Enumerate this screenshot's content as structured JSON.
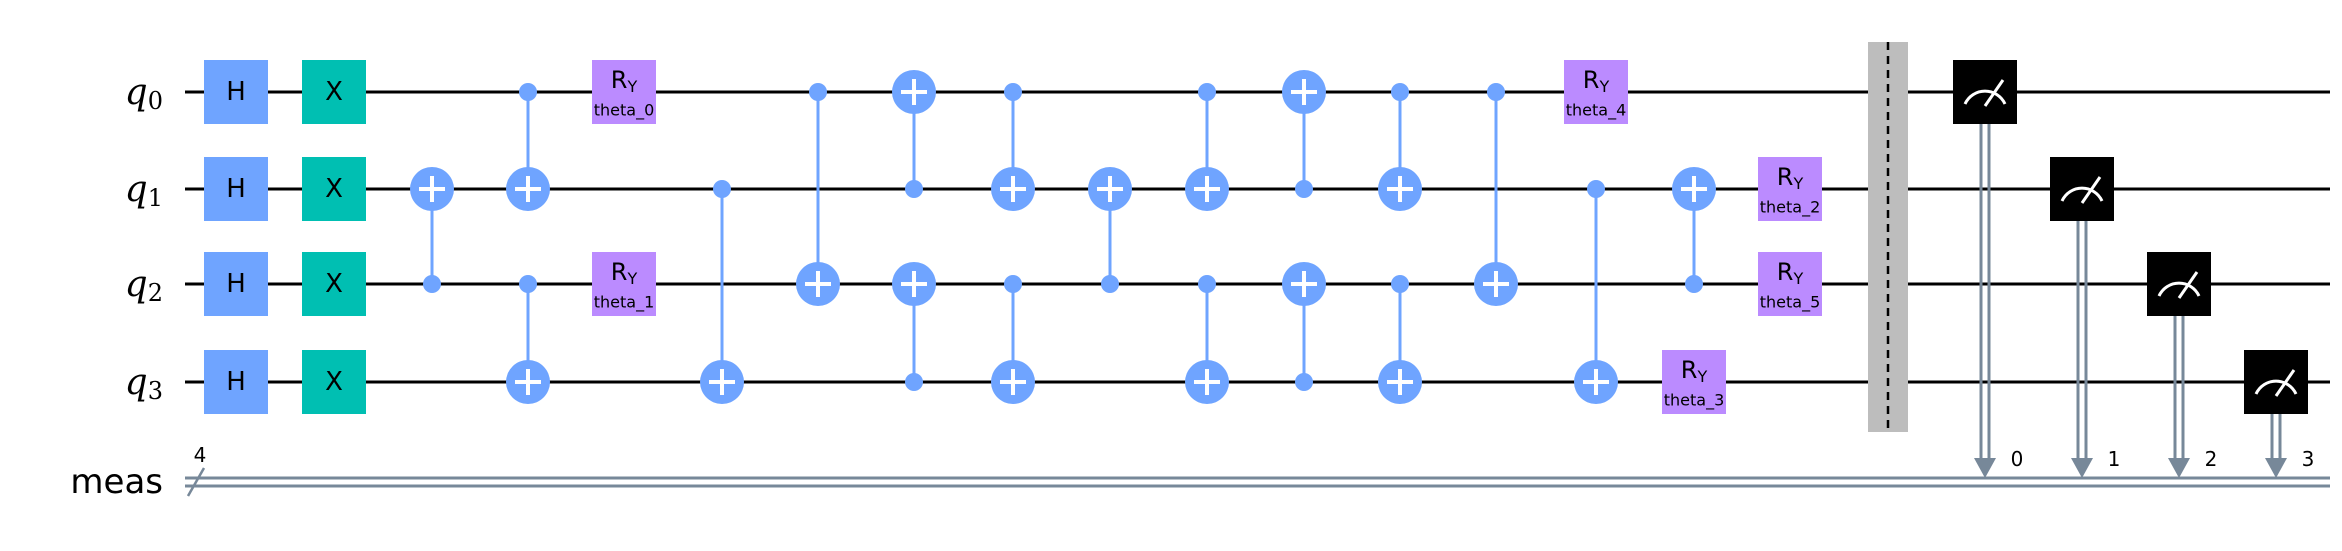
{
  "qubits": [
    {
      "name": "q",
      "index": "0"
    },
    {
      "name": "q",
      "index": "1"
    },
    {
      "name": "q",
      "index": "2"
    },
    {
      "name": "q",
      "index": "3"
    }
  ],
  "creg": {
    "name": "meas",
    "size": "4"
  },
  "colors": {
    "hadamard": "#6fa4ff",
    "pauli_x": "#00bfb2",
    "controlled": "#6fa4ff",
    "rotation": "#bb8bff",
    "barrier": "#bdbdbd",
    "measure": "#000000",
    "classical": "#778899",
    "wire": "#000000"
  },
  "gate_text": {
    "hadamard": "H",
    "pauli_x": "X",
    "rotation_main": "R",
    "rotation_sub": "Y",
    "measure_bits": [
      "0",
      "1",
      "2",
      "3"
    ]
  },
  "layers": [
    [
      {
        "type": "h",
        "q": 0
      },
      {
        "type": "h",
        "q": 1
      },
      {
        "type": "h",
        "q": 2
      },
      {
        "type": "h",
        "q": 3
      }
    ],
    [
      {
        "type": "x",
        "q": 0
      },
      {
        "type": "x",
        "q": 1
      },
      {
        "type": "x",
        "q": 2
      },
      {
        "type": "x",
        "q": 3
      }
    ],
    [
      {
        "type": "cx",
        "c": 2,
        "t": 1
      }
    ],
    [
      {
        "type": "cx",
        "c": 0,
        "t": 1
      },
      {
        "type": "cx",
        "c": 2,
        "t": 3
      }
    ],
    [
      {
        "type": "ry",
        "q": 0,
        "param": "theta_0"
      },
      {
        "type": "ry",
        "q": 2,
        "param": "theta_1"
      }
    ],
    [
      {
        "type": "cx",
        "c": 1,
        "t": 3
      }
    ],
    [
      {
        "type": "cx",
        "c": 0,
        "t": 2
      }
    ],
    [
      {
        "type": "cx",
        "c": 1,
        "t": 0
      },
      {
        "type": "cx",
        "c": 3,
        "t": 2
      }
    ],
    [
      {
        "type": "cx",
        "c": 0,
        "t": 1
      },
      {
        "type": "cx",
        "c": 2,
        "t": 3
      }
    ],
    [
      {
        "type": "cx",
        "c": 2,
        "t": 1
      }
    ],
    [
      {
        "type": "cx",
        "c": 0,
        "t": 1
      },
      {
        "type": "cx",
        "c": 2,
        "t": 3
      }
    ],
    [
      {
        "type": "cx",
        "c": 1,
        "t": 0
      },
      {
        "type": "cx",
        "c": 3,
        "t": 2
      }
    ],
    [
      {
        "type": "cx",
        "c": 0,
        "t": 1
      },
      {
        "type": "cx",
        "c": 2,
        "t": 3
      }
    ],
    [
      {
        "type": "cx",
        "c": 0,
        "t": 2
      }
    ],
    [
      {
        "type": "ry",
        "q": 0,
        "param": "theta_4"
      },
      {
        "type": "cx",
        "c": 1,
        "t": 3
      }
    ],
    [
      {
        "type": "cx",
        "c": 2,
        "t": 1
      },
      {
        "type": "ry",
        "q": 3,
        "param": "theta_3"
      }
    ],
    [
      {
        "type": "ry",
        "q": 1,
        "param": "theta_2"
      },
      {
        "type": "ry",
        "q": 2,
        "param": "theta_5"
      }
    ],
    [
      {
        "type": "barrier"
      }
    ],
    [
      {
        "type": "measure",
        "q": 0,
        "bit": 0
      }
    ],
    [
      {
        "type": "measure",
        "q": 1,
        "bit": 1
      }
    ],
    [
      {
        "type": "measure",
        "q": 2,
        "bit": 2
      }
    ],
    [
      {
        "type": "measure",
        "q": 3,
        "bit": 3
      }
    ]
  ]
}
